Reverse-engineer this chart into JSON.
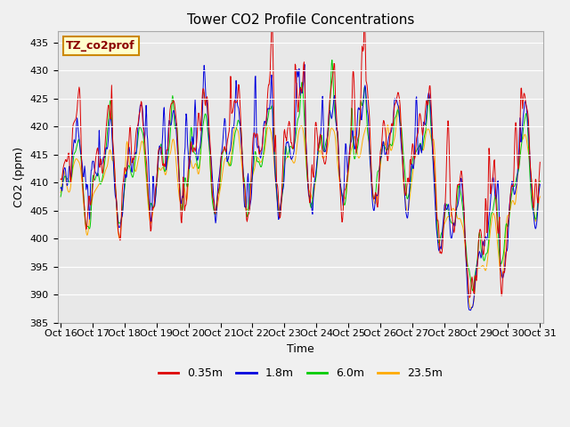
{
  "title": "Tower CO2 Profile Concentrations",
  "xlabel": "Time",
  "ylabel": "CO2 (ppm)",
  "ylim": [
    385,
    437
  ],
  "yticks": [
    385,
    390,
    395,
    400,
    405,
    410,
    415,
    420,
    425,
    430,
    435
  ],
  "xtick_labels": [
    "Oct 16",
    "Oct 17",
    "Oct 18",
    "Oct 19",
    "Oct 20",
    "Oct 21",
    "Oct 22",
    "Oct 23",
    "Oct 24",
    "Oct 25",
    "Oct 26",
    "Oct 27",
    "Oct 28",
    "Oct 29",
    "Oct 30",
    "Oct 31"
  ],
  "series_colors": [
    "#dd0000",
    "#0000dd",
    "#00cc00",
    "#ffaa00"
  ],
  "series_labels": [
    "0.35m",
    "1.8m",
    "6.0m",
    "23.5m"
  ],
  "annotation_text": "TZ_co2prof",
  "annotation_bg": "#ffffcc",
  "annotation_border": "#cc8800",
  "plot_bg_color": "#e8e8e8",
  "fig_bg_color": "#f0f0f0",
  "grid_color": "#ffffff",
  "title_fontsize": 11,
  "axis_fontsize": 9,
  "tick_fontsize": 8,
  "legend_fontsize": 9,
  "n_points": 960,
  "random_seed": 7
}
